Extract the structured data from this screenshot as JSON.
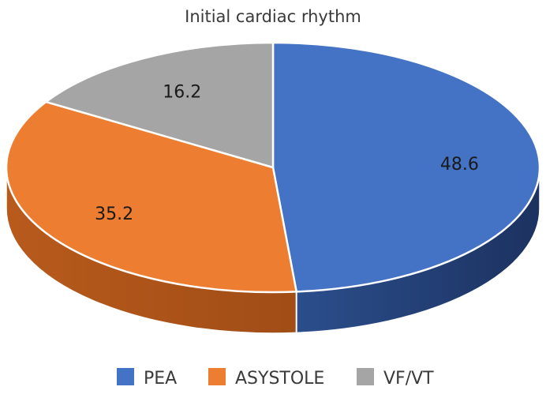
{
  "chart_data": {
    "type": "pie",
    "title": "Initial cardiac rhythm",
    "categories": [
      "PEA",
      "ASYSTOLE",
      "VF/VT"
    ],
    "values": [
      48.6,
      35.2,
      16.2
    ],
    "data_labels": [
      "48.6",
      "35.2",
      "16.2"
    ],
    "colors": [
      "#4472C4",
      "#ED7D31",
      "#A5A5A5"
    ],
    "style": "3d",
    "legend_position": "bottom"
  }
}
